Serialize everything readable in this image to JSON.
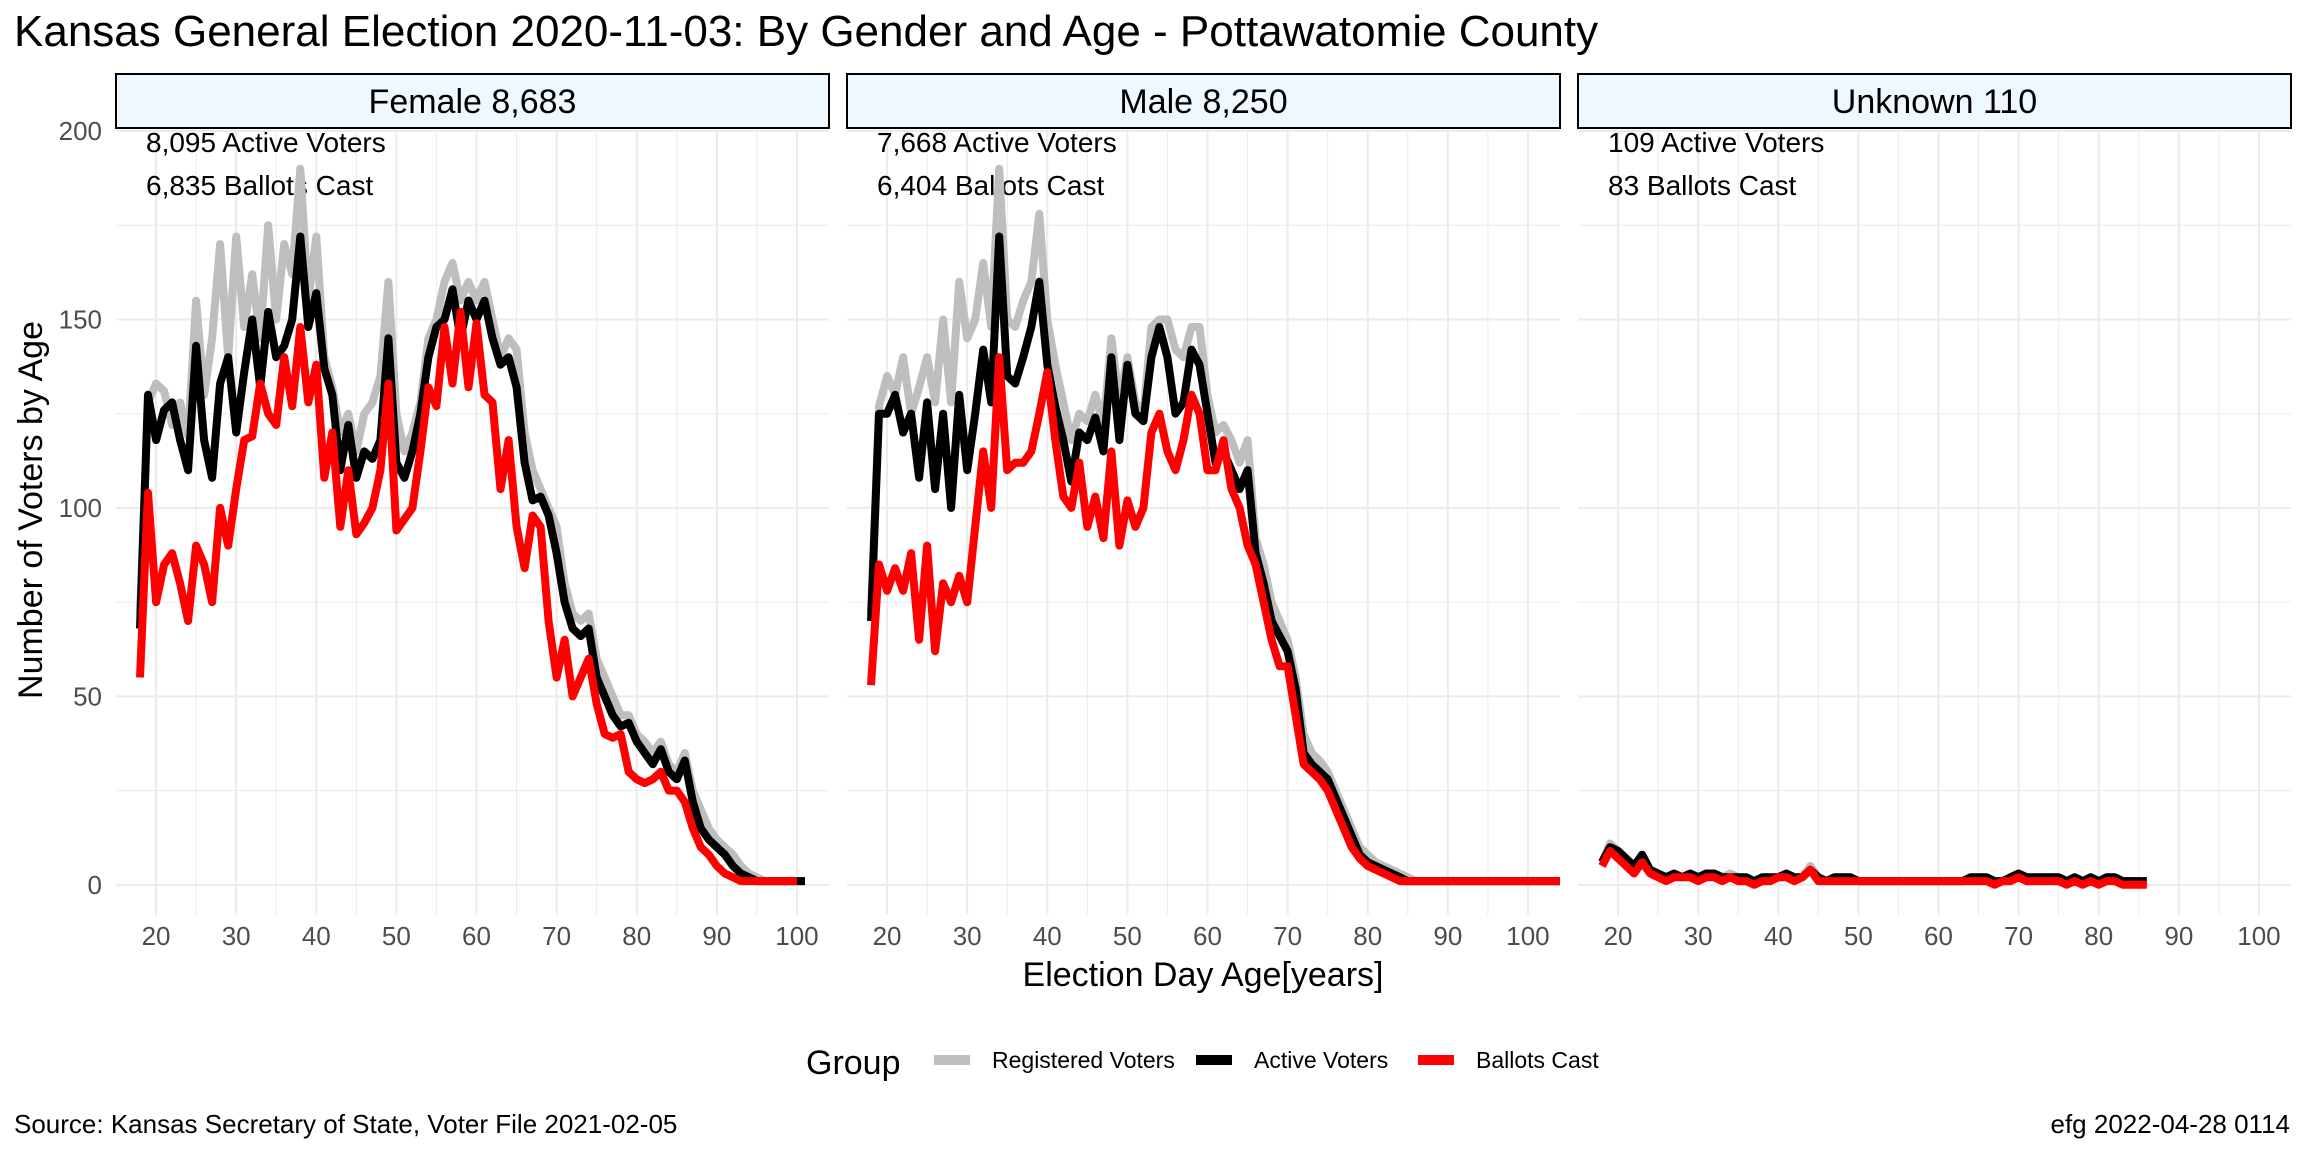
{
  "title": "Kansas General Election 2020-11-03:  By Gender and Age - Pottawatomie County",
  "caption_left": "Source:  Kansas Secretary of State, Voter File  2021-02-05",
  "caption_right": "efg 2022-04-28 0114",
  "legend": {
    "title": "Group",
    "items": [
      {
        "label": "Registered Voters",
        "color": "#bebebe"
      },
      {
        "label": "Active Voters",
        "color": "#000000"
      },
      {
        "label": "Ballots Cast",
        "color": "#ff0000"
      }
    ]
  },
  "colors": {
    "strip_fill": "#f0f8ff",
    "grid": "#ebebeb"
  },
  "chart_data": {
    "type": "line",
    "xlabel": "Election Day Age[years]",
    "ylabel": "Number of Voters by Age",
    "xlim": [
      15,
      104
    ],
    "ylim": [
      -8,
      200
    ],
    "x_ticks": [
      20,
      30,
      40,
      50,
      60,
      70,
      80,
      90,
      100
    ],
    "y_ticks": [
      0,
      50,
      100,
      150,
      200
    ],
    "grid": true,
    "legend_position": "bottom",
    "panels": [
      {
        "strip": "Female 8,683",
        "annotations": [
          "8,095 Active Voters",
          "6,835 Ballots Cast"
        ],
        "x_start": 18,
        "series": [
          {
            "name": "Registered Voters",
            "values": [
              72,
              128,
              133,
              131,
              122,
              128,
              119,
              155,
              130,
              145,
              170,
              140,
              172,
              148,
              162,
              145,
              175,
              150,
              170,
              162,
              190,
              155,
              172,
              140,
              132,
              120,
              125,
              115,
              125,
              128,
              135,
              160,
              125,
              115,
              120,
              128,
              145,
              150,
              160,
              165,
              155,
              160,
              155,
              160,
              150,
              140,
              145,
              142,
              120,
              110,
              105,
              100,
              95,
              80,
              72,
              70,
              72,
              60,
              55,
              50,
              45,
              45,
              40,
              38,
              35,
              38,
              32,
              30,
              35,
              25,
              20,
              15,
              12,
              10,
              8,
              5,
              3,
              2,
              1,
              1,
              1,
              1,
              1,
              1
            ]
          },
          {
            "name": "Active Voters",
            "values": [
              68,
              130,
              118,
              126,
              128,
              118,
              110,
              143,
              118,
              108,
              133,
              140,
              120,
              136,
              150,
              132,
              152,
              140,
              143,
              150,
              172,
              148,
              157,
              137,
              130,
              110,
              122,
              108,
              115,
              113,
              118,
              145,
              112,
              108,
              115,
              125,
              140,
              148,
              150,
              158,
              145,
              155,
              150,
              155,
              145,
              138,
              140,
              132,
              112,
              102,
              103,
              98,
              88,
              75,
              68,
              66,
              68,
              55,
              50,
              45,
              42,
              43,
              38,
              35,
              32,
              36,
              30,
              28,
              33,
              22,
              15,
              12,
              10,
              8,
              5,
              3,
              2,
              1,
              1,
              1,
              1,
              1,
              1,
              1
            ]
          },
          {
            "name": "Ballots Cast",
            "values": [
              55,
              104,
              75,
              85,
              88,
              80,
              70,
              90,
              85,
              75,
              100,
              90,
              105,
              118,
              119,
              133,
              125,
              122,
              140,
              127,
              148,
              128,
              138,
              108,
              120,
              95,
              110,
              93,
              96,
              100,
              110,
              133,
              94,
              97,
              100,
              115,
              132,
              127,
              148,
              133,
              152,
              132,
              149,
              130,
              128,
              105,
              118,
              95,
              84,
              98,
              95,
              70,
              55,
              65,
              50,
              55,
              60,
              48,
              40,
              39,
              40,
              30,
              28,
              27,
              28,
              30,
              25,
              25,
              22,
              15,
              10,
              8,
              5,
              3,
              2,
              1,
              1,
              1,
              1,
              1,
              1,
              1,
              1
            ]
          }
        ]
      },
      {
        "strip": "Male 8,250",
        "annotations": [
          "7,668 Active Voters",
          "6,404 Ballots Cast"
        ],
        "x_start": 18,
        "series": [
          {
            "name": "Registered Voters",
            "values": [
              72,
              127,
              135,
              130,
              140,
              125,
              132,
              140,
              128,
              150,
              128,
              160,
              145,
              150,
              165,
              148,
              190,
              150,
              148,
              155,
              160,
              178,
              150,
              138,
              128,
              118,
              125,
              123,
              130,
              122,
              145,
              128,
              140,
              128,
              125,
              148,
              150,
              150,
              142,
              140,
              148,
              148,
              130,
              120,
              122,
              118,
              112,
              118,
              92,
              85,
              75,
              70,
              65,
              55,
              40,
              35,
              33,
              30,
              25,
              20,
              15,
              10,
              8,
              6,
              5,
              4,
              3,
              2,
              1,
              1,
              1,
              1,
              1,
              1,
              1,
              1,
              1,
              1,
              1,
              1,
              1,
              1,
              1,
              1,
              1,
              1,
              1
            ]
          },
          {
            "name": "Active Voters",
            "values": [
              70,
              125,
              125,
              130,
              120,
              125,
              108,
              128,
              105,
              125,
              100,
              130,
              110,
              125,
              142,
              128,
              172,
              135,
              133,
              140,
              148,
              160,
              138,
              127,
              118,
              107,
              120,
              118,
              124,
              115,
              140,
              118,
              138,
              125,
              123,
              140,
              148,
              140,
              125,
              128,
              142,
              138,
              125,
              112,
              115,
              110,
              105,
              110,
              88,
              80,
              70,
              66,
              62,
              52,
              35,
              32,
              30,
              28,
              23,
              18,
              13,
              8,
              6,
              5,
              4,
              3,
              2,
              1,
              1,
              1,
              1,
              1,
              1,
              1,
              1,
              1,
              1,
              1,
              1,
              1,
              1,
              1,
              1,
              1,
              1,
              1,
              1
            ]
          },
          {
            "name": "Ballots Cast",
            "values": [
              53,
              85,
              78,
              84,
              78,
              88,
              65,
              90,
              62,
              80,
              75,
              82,
              75,
              95,
              115,
              100,
              140,
              110,
              112,
              112,
              115,
              125,
              136,
              118,
              103,
              100,
              112,
              95,
              103,
              92,
              115,
              90,
              102,
              95,
              100,
              120,
              125,
              115,
              110,
              118,
              130,
              125,
              110,
              110,
              118,
              105,
              100,
              90,
              85,
              75,
              65,
              58,
              58,
              45,
              32,
              30,
              28,
              25,
              20,
              15,
              10,
              7,
              5,
              4,
              3,
              2,
              1,
              1,
              1,
              1,
              1,
              1,
              1,
              1,
              1,
              1,
              1,
              1,
              1,
              1,
              1,
              1,
              1,
              1,
              1,
              1,
              1
            ]
          }
        ]
      },
      {
        "strip": "Unknown 110",
        "annotations": [
          "109 Active Voters",
          "83 Ballots Cast"
        ],
        "x_start": 18,
        "series": [
          {
            "name": "Registered Voters",
            "values": [
              6,
              11,
              9,
              7,
              5,
              8,
              4,
              3,
              2,
              3,
              2,
              3,
              2,
              3,
              3,
              2,
              3,
              2,
              2,
              1,
              2,
              2,
              2,
              3,
              2,
              2,
              5,
              2,
              1,
              2,
              2,
              2,
              1,
              1,
              1,
              1,
              1,
              1,
              1,
              1,
              1,
              1,
              1,
              1,
              1,
              1,
              2,
              2,
              2,
              1,
              1,
              2,
              3,
              2,
              2,
              2,
              2,
              2,
              1,
              2,
              1,
              2,
              1,
              2,
              2,
              1,
              1,
              1,
              1
            ]
          },
          {
            "name": "Active Voters",
            "values": [
              6,
              10,
              9,
              7,
              5,
              8,
              4,
              3,
              2,
              3,
              2,
              3,
              2,
              3,
              3,
              2,
              2,
              2,
              2,
              1,
              2,
              2,
              2,
              3,
              2,
              2,
              4,
              2,
              1,
              2,
              2,
              2,
              1,
              1,
              1,
              1,
              1,
              1,
              1,
              1,
              1,
              1,
              1,
              1,
              1,
              1,
              2,
              2,
              2,
              1,
              1,
              2,
              3,
              2,
              2,
              2,
              2,
              2,
              1,
              2,
              1,
              2,
              1,
              2,
              2,
              1,
              1,
              1,
              1
            ]
          },
          {
            "name": "Ballots Cast",
            "values": [
              5,
              9,
              7,
              5,
              3,
              6,
              3,
              2,
              1,
              2,
              2,
              2,
              1,
              2,
              2,
              1,
              2,
              1,
              1,
              0,
              1,
              1,
              2,
              2,
              1,
              2,
              4,
              1,
              1,
              1,
              1,
              1,
              1,
              1,
              1,
              1,
              1,
              1,
              1,
              1,
              1,
              1,
              1,
              1,
              1,
              1,
              1,
              1,
              1,
              0,
              1,
              1,
              2,
              1,
              1,
              1,
              1,
              1,
              0,
              1,
              0,
              1,
              0,
              1,
              1,
              0,
              0,
              0,
              0
            ]
          }
        ]
      }
    ]
  }
}
